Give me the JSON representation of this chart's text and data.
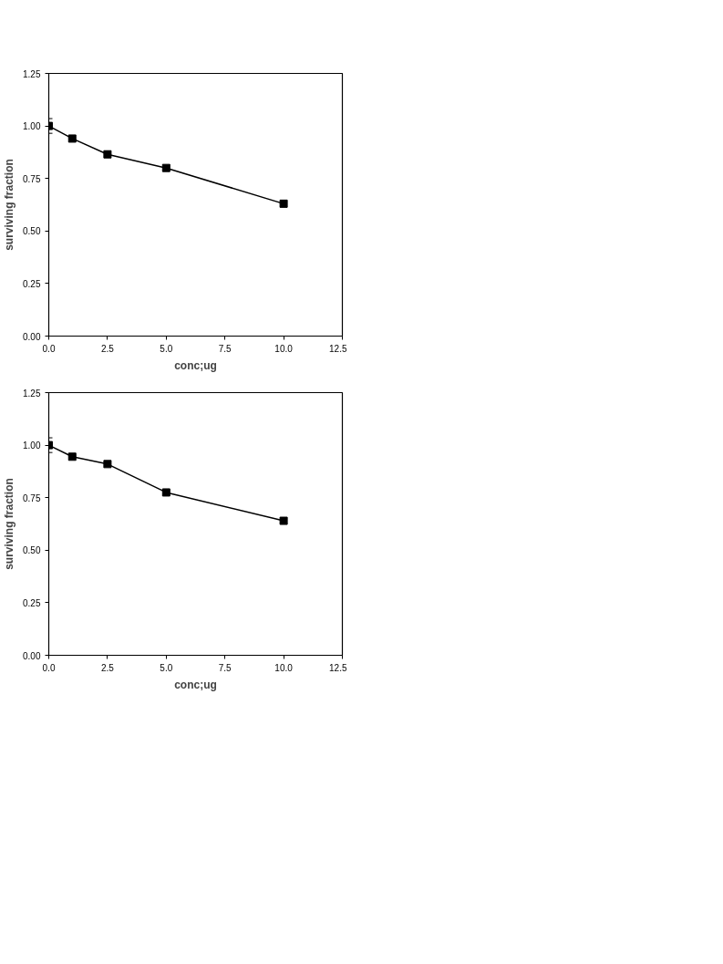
{
  "chart_data": [
    {
      "type": "line",
      "xlabel": "conc;ug",
      "ylabel": "surviving fraction",
      "marker": "square",
      "line_style": "solid",
      "grid": false,
      "x": [
        0,
        1,
        2.5,
        5,
        10
      ],
      "series": [
        {
          "color": "#000000",
          "values": [
            1.0,
            0.94,
            0.865,
            0.8,
            0.63
          ],
          "errors": [
            0.035,
            null,
            0.015,
            null,
            0.015
          ]
        }
      ],
      "xlim": [
        0,
        12.5
      ],
      "ylim": [
        0,
        1.25
      ],
      "xticks": [
        {
          "value": 0,
          "label": "0.0"
        },
        {
          "value": 2.5,
          "label": "2.5"
        },
        {
          "value": 5,
          "label": "5.0"
        },
        {
          "value": 7.5,
          "label": "7.5"
        },
        {
          "value": 10,
          "label": "10.0"
        },
        {
          "value": 12.5,
          "label": "12.5"
        }
      ],
      "yticks": [
        {
          "value": 0,
          "label": "0.00"
        },
        {
          "value": 0.25,
          "label": "0.25"
        },
        {
          "value": 0.5,
          "label": "0.50"
        },
        {
          "value": 0.75,
          "label": "0.75"
        },
        {
          "value": 1,
          "label": "1.00"
        },
        {
          "value": 1.25,
          "label": "1.25"
        }
      ]
    },
    {
      "type": "line",
      "xlabel": "conc;ug",
      "ylabel": "surviving fraction",
      "marker": "square",
      "line_style": "solid",
      "grid": false,
      "x": [
        0,
        1,
        2.5,
        5,
        10
      ],
      "series": [
        {
          "color": "#000000",
          "values": [
            1.0,
            0.945,
            0.91,
            0.775,
            0.64
          ],
          "errors": [
            0.035,
            null,
            null,
            0.01,
            0.01
          ]
        }
      ],
      "xlim": [
        0,
        12.5
      ],
      "ylim": [
        0,
        1.25
      ],
      "xticks": [
        {
          "value": 0,
          "label": "0.0"
        },
        {
          "value": 2.5,
          "label": "2.5"
        },
        {
          "value": 5,
          "label": "5.0"
        },
        {
          "value": 7.5,
          "label": "7.5"
        },
        {
          "value": 10,
          "label": "10.0"
        },
        {
          "value": 12.5,
          "label": "12.5"
        }
      ],
      "yticks": [
        {
          "value": 0,
          "label": "0.00"
        },
        {
          "value": 0.25,
          "label": "0.25"
        },
        {
          "value": 0.5,
          "label": "0.50"
        },
        {
          "value": 0.75,
          "label": "0.75"
        },
        {
          "value": 1,
          "label": "1.00"
        },
        {
          "value": 1.25,
          "label": "1.25"
        }
      ]
    }
  ]
}
